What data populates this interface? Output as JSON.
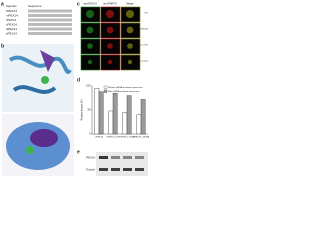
{
  "panel_labels": [
    "a",
    "b",
    "c",
    "d",
    "e"
  ],
  "alignment": {
    "header": [
      "Species",
      "Sequence"
    ],
    "rows": [
      "hPEX14",
      "mPEX14",
      "rPEX14",
      "xPEX14",
      "dPEX14",
      "yPEX14"
    ]
  },
  "microscopy": {
    "columns": [
      "anti-PEX14",
      "anti-PMP70",
      "Merge"
    ],
    "rows": [
      "WT",
      "siPEX14",
      "siPEX14 +WT",
      "siPEX14 +mutant"
    ]
  },
  "chart_data": {
    "type": "bar",
    "y_label": "Relative import (%)",
    "categories": [
      "siPEX14",
      "siPEX14 +WT",
      "siPEX14 +F52A",
      "siPEX14 +W53A"
    ],
    "series": [
      {
        "name": "Without siRNA-resistant expression",
        "color": "#ffffff",
        "values": [
          95,
          48,
          45,
          40
        ]
      },
      {
        "name": "With siRNA-resistant expression",
        "color": "#9a9a9a",
        "values": [
          88,
          85,
          80,
          72
        ]
      }
    ],
    "ylim": [
      0,
      100
    ],
    "yticks": [
      0,
      50,
      100
    ]
  },
  "blot": {
    "labels": [
      "PEX14",
      "Tubulin"
    ]
  }
}
